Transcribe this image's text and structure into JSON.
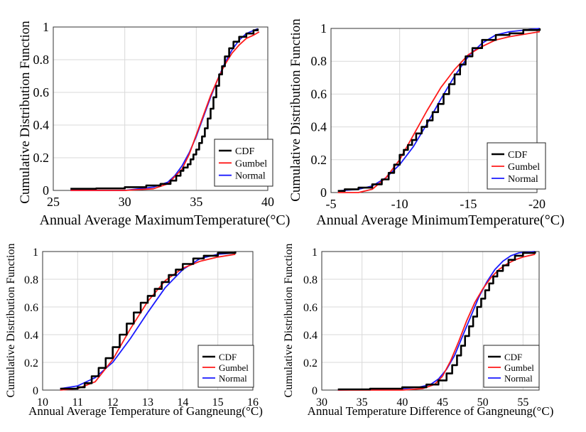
{
  "chart_data": [
    {
      "type": "line",
      "xlabel": "Annual Average MaximumTemperature(°C)",
      "ylabel": "Cumulative Distribution Function",
      "xlim": [
        25,
        40
      ],
      "ylim": [
        0,
        1
      ],
      "xticks": [
        25,
        30,
        35,
        40
      ],
      "yticks": [
        0,
        0.2,
        0.4,
        0.6,
        0.8,
        1
      ],
      "grid": true,
      "legend_position": "bottom-right",
      "series": [
        {
          "name": "CDF",
          "color": "#000000",
          "step": true,
          "x": [
            26.2,
            28,
            30,
            31.5,
            32.5,
            33.2,
            33.6,
            33.9,
            34.1,
            34.4,
            34.6,
            34.8,
            35,
            35.2,
            35.4,
            35.6,
            35.8,
            36,
            36.2,
            36.4,
            36.6,
            36.8,
            37,
            37.3,
            37.6,
            38,
            38.5,
            39,
            39.3
          ],
          "y": [
            0.01,
            0.012,
            0.02,
            0.03,
            0.04,
            0.06,
            0.09,
            0.12,
            0.14,
            0.16,
            0.19,
            0.22,
            0.25,
            0.29,
            0.33,
            0.38,
            0.44,
            0.5,
            0.57,
            0.64,
            0.71,
            0.76,
            0.82,
            0.87,
            0.91,
            0.94,
            0.96,
            0.98,
            0.99
          ]
        },
        {
          "name": "Gumbel",
          "color": "#ff1a1a",
          "x": [
            26.2,
            30,
            32,
            33,
            34,
            34.5,
            35,
            35.5,
            36,
            36.5,
            37,
            37.5,
            38,
            38.5,
            39,
            39.4
          ],
          "y": [
            0,
            0,
            0.01,
            0.04,
            0.13,
            0.22,
            0.34,
            0.46,
            0.58,
            0.68,
            0.77,
            0.84,
            0.89,
            0.93,
            0.95,
            0.97
          ]
        },
        {
          "name": "Normal",
          "color": "#1a1aff",
          "x": [
            26.2,
            30,
            32,
            33,
            33.5,
            34,
            34.5,
            35,
            35.5,
            36,
            36.5,
            37,
            37.5,
            38,
            38.5,
            39.3
          ],
          "y": [
            0,
            0,
            0.02,
            0.05,
            0.09,
            0.15,
            0.23,
            0.33,
            0.45,
            0.57,
            0.68,
            0.78,
            0.86,
            0.92,
            0.96,
            0.99
          ]
        }
      ]
    },
    {
      "type": "line",
      "xlabel": "Annual Average MinimumTemperature(°C)",
      "ylabel": "Cumulative Distribution Function",
      "xlim": [
        -5,
        -20
      ],
      "ylim": [
        0,
        1
      ],
      "xticks": [
        -5,
        -10,
        -15,
        -20
      ],
      "yticks": [
        0,
        0.2,
        0.4,
        0.6,
        0.8,
        1
      ],
      "grid": true,
      "legend_position": "bottom-right",
      "series": [
        {
          "name": "CDF",
          "color": "#000000",
          "step": true,
          "x": [
            -5.5,
            -6,
            -7,
            -8,
            -8.7,
            -9.2,
            -9.6,
            -10,
            -10.3,
            -10.6,
            -10.9,
            -11.2,
            -11.6,
            -12,
            -12.4,
            -12.8,
            -13.2,
            -13.6,
            -14,
            -14.4,
            -14.8,
            -15.3,
            -16,
            -17,
            -18,
            -19,
            -20.2
          ],
          "y": [
            0.01,
            0.02,
            0.03,
            0.05,
            0.08,
            0.12,
            0.17,
            0.23,
            0.26,
            0.29,
            0.32,
            0.36,
            0.4,
            0.44,
            0.49,
            0.54,
            0.6,
            0.66,
            0.72,
            0.78,
            0.83,
            0.88,
            0.93,
            0.96,
            0.97,
            0.99,
            1.0
          ]
        },
        {
          "name": "Gumbel",
          "color": "#ff1a1a",
          "x": [
            -5.5,
            -7,
            -8,
            -9,
            -10,
            -11,
            -12,
            -13,
            -14,
            -15,
            -16,
            -17,
            -18,
            -20.2
          ],
          "y": [
            0,
            0,
            0.02,
            0.09,
            0.2,
            0.35,
            0.5,
            0.64,
            0.75,
            0.84,
            0.89,
            0.93,
            0.95,
            0.98
          ]
        },
        {
          "name": "Normal",
          "color": "#1a1aff",
          "x": [
            -5.5,
            -7,
            -8,
            -9,
            -10,
            -11,
            -12,
            -13,
            -14,
            -15,
            -16,
            -17,
            -18,
            -20.2
          ],
          "y": [
            0.01,
            0.02,
            0.04,
            0.09,
            0.17,
            0.28,
            0.42,
            0.57,
            0.71,
            0.83,
            0.91,
            0.96,
            0.98,
            1.0
          ]
        }
      ]
    },
    {
      "type": "line",
      "xlabel": "Annual Average Temperature of Gangneung(°C)",
      "ylabel": "Cumulative Distribution Function",
      "xlim": [
        10,
        16
      ],
      "ylim": [
        0,
        1
      ],
      "xticks": [
        10,
        11,
        12,
        13,
        14,
        15,
        16
      ],
      "yticks": [
        0,
        0.2,
        0.4,
        0.6,
        0.8,
        1
      ],
      "grid": true,
      "legend_position": "bottom-right",
      "series": [
        {
          "name": "CDF",
          "color": "#000000",
          "step": true,
          "x": [
            10.5,
            11,
            11.2,
            11.4,
            11.6,
            11.8,
            12,
            12.2,
            12.4,
            12.6,
            12.8,
            13,
            13.2,
            13.4,
            13.6,
            13.8,
            14,
            14.3,
            14.6,
            15,
            15.5
          ],
          "y": [
            0.01,
            0.02,
            0.05,
            0.1,
            0.16,
            0.23,
            0.31,
            0.4,
            0.48,
            0.56,
            0.63,
            0.68,
            0.73,
            0.78,
            0.83,
            0.87,
            0.91,
            0.95,
            0.97,
            0.99,
            1.0
          ]
        },
        {
          "name": "Gumbel",
          "color": "#ff1a1a",
          "x": [
            10.5,
            11,
            11.5,
            12,
            12.5,
            13,
            13.5,
            14,
            14.5,
            15,
            15.5
          ],
          "y": [
            0,
            0.01,
            0.06,
            0.22,
            0.44,
            0.64,
            0.79,
            0.88,
            0.93,
            0.96,
            0.98
          ]
        },
        {
          "name": "Normal",
          "color": "#1a1aff",
          "x": [
            10.5,
            11,
            11.5,
            12,
            12.5,
            13,
            13.5,
            14,
            14.5,
            15,
            15.5
          ],
          "y": [
            0.01,
            0.03,
            0.09,
            0.2,
            0.37,
            0.56,
            0.74,
            0.87,
            0.95,
            0.98,
            0.99
          ]
        }
      ]
    },
    {
      "type": "line",
      "xlabel": "Annual Temperature Difference of Gangneung(°C)",
      "ylabel": "Cumulative Distribution Function",
      "xlim": [
        30,
        57
      ],
      "ylim": [
        0,
        1
      ],
      "xticks": [
        30,
        35,
        40,
        45,
        50,
        55
      ],
      "yticks": [
        0,
        0.2,
        0.4,
        0.6,
        0.8,
        1
      ],
      "grid": true,
      "legend_position": "bottom-right",
      "series": [
        {
          "name": "CDF",
          "color": "#000000",
          "step": true,
          "x": [
            32,
            36,
            40,
            43,
            44.5,
            45.5,
            46.2,
            46.8,
            47.3,
            47.8,
            48.3,
            48.8,
            49.3,
            49.8,
            50.3,
            50.8,
            51.3,
            51.8,
            52.5,
            53.2,
            54,
            55,
            56.5
          ],
          "y": [
            0.005,
            0.01,
            0.02,
            0.04,
            0.07,
            0.12,
            0.18,
            0.25,
            0.32,
            0.39,
            0.46,
            0.53,
            0.6,
            0.66,
            0.72,
            0.77,
            0.82,
            0.86,
            0.9,
            0.94,
            0.97,
            0.99,
            1.0
          ]
        },
        {
          "name": "Gumbel",
          "color": "#ff1a1a",
          "x": [
            32,
            40,
            42.5,
            44,
            45,
            46,
            47,
            48,
            49,
            50,
            51,
            52,
            53,
            54,
            55,
            56.5
          ],
          "y": [
            0,
            0,
            0.01,
            0.04,
            0.1,
            0.21,
            0.35,
            0.5,
            0.63,
            0.73,
            0.81,
            0.87,
            0.91,
            0.94,
            0.96,
            0.98
          ]
        },
        {
          "name": "Normal",
          "color": "#1a1aff",
          "x": [
            32,
            40,
            42,
            43.5,
            44.5,
            45.5,
            46.5,
            47.5,
            48.5,
            49.5,
            50.5,
            51.5,
            52.5,
            53.5,
            54.5,
            56.5
          ],
          "y": [
            0,
            0.01,
            0.02,
            0.04,
            0.08,
            0.15,
            0.25,
            0.39,
            0.53,
            0.67,
            0.78,
            0.87,
            0.93,
            0.97,
            0.99,
            1.0
          ]
        }
      ]
    }
  ]
}
